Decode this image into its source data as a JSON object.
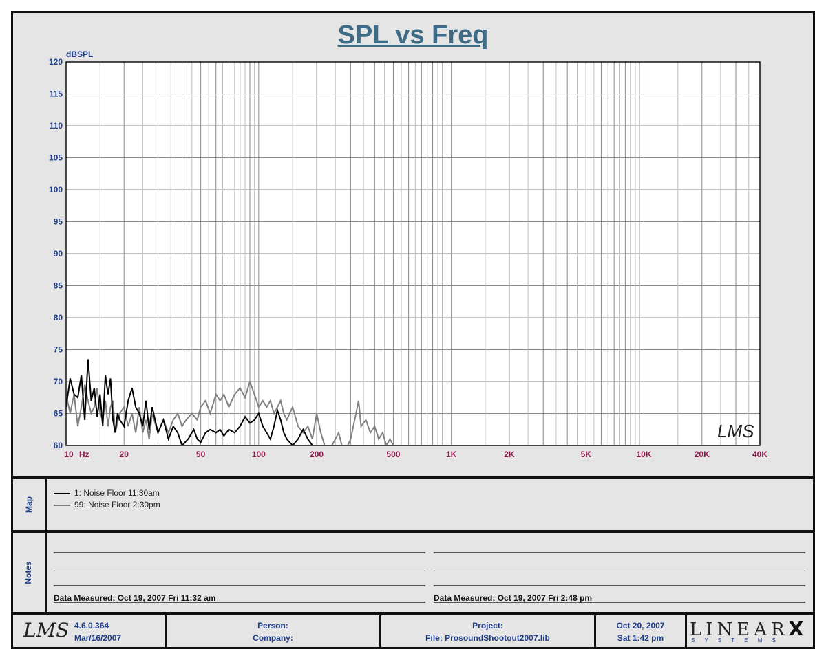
{
  "chart_data": {
    "type": "line",
    "title": "SPL vs Freq",
    "ylabel": "dBSPL",
    "xlabel": "",
    "xscale": "log",
    "xlim": [
      10,
      40000
    ],
    "ylim": [
      60,
      120
    ],
    "grid": true,
    "y_ticks": [
      "60",
      "65",
      "70",
      "75",
      "80",
      "85",
      "90",
      "95",
      "100",
      "105",
      "110",
      "115",
      "120"
    ],
    "x_ticks": [
      {
        "value": 10,
        "label": "10"
      },
      {
        "value": 20,
        "label": "20"
      },
      {
        "value": 50,
        "label": "50"
      },
      {
        "value": 100,
        "label": "100"
      },
      {
        "value": 200,
        "label": "200"
      },
      {
        "value": 500,
        "label": "500"
      },
      {
        "value": 1000,
        "label": "1K"
      },
      {
        "value": 2000,
        "label": "2K"
      },
      {
        "value": 5000,
        "label": "5K"
      },
      {
        "value": 10000,
        "label": "10K"
      },
      {
        "value": 20000,
        "label": "20K"
      },
      {
        "value": 40000,
        "label": "40K"
      }
    ],
    "x_unit": "Hz",
    "series": [
      {
        "name": "1: Noise Floor 11:30am",
        "color": "#000000",
        "points": [
          [
            10,
            66
          ],
          [
            10.5,
            70.5
          ],
          [
            11,
            68
          ],
          [
            11.5,
            67.5
          ],
          [
            12,
            71
          ],
          [
            12.5,
            64
          ],
          [
            13,
            73.5
          ],
          [
            13.5,
            67
          ],
          [
            14,
            69
          ],
          [
            14.5,
            64.5
          ],
          [
            15,
            68
          ],
          [
            15.5,
            63
          ],
          [
            16,
            71
          ],
          [
            16.5,
            68
          ],
          [
            17,
            70.5
          ],
          [
            17.5,
            64
          ],
          [
            18,
            62
          ],
          [
            18.5,
            65
          ],
          [
            19,
            64
          ],
          [
            20,
            63
          ],
          [
            21,
            67
          ],
          [
            22,
            69
          ],
          [
            23,
            66
          ],
          [
            24,
            65
          ],
          [
            25,
            63
          ],
          [
            26,
            67
          ],
          [
            27,
            62.5
          ],
          [
            28,
            66
          ],
          [
            30,
            62
          ],
          [
            32,
            64
          ],
          [
            34,
            61
          ],
          [
            36,
            63
          ],
          [
            38,
            62
          ],
          [
            40,
            60
          ],
          [
            43,
            61
          ],
          [
            46,
            62.5
          ],
          [
            48,
            61
          ],
          [
            50,
            60.5
          ],
          [
            53,
            62
          ],
          [
            56,
            62.5
          ],
          [
            60,
            62
          ],
          [
            63,
            62.5
          ],
          [
            66,
            61.5
          ],
          [
            70,
            62.5
          ],
          [
            75,
            62
          ],
          [
            80,
            63
          ],
          [
            85,
            64.5
          ],
          [
            90,
            63.5
          ],
          [
            95,
            64
          ],
          [
            100,
            65
          ],
          [
            105,
            63
          ],
          [
            110,
            62
          ],
          [
            115,
            61
          ],
          [
            120,
            63
          ],
          [
            125,
            65.5
          ],
          [
            130,
            64
          ],
          [
            135,
            62
          ],
          [
            140,
            61
          ],
          [
            150,
            60
          ],
          [
            160,
            61
          ],
          [
            170,
            62.5
          ],
          [
            180,
            61
          ],
          [
            190,
            60
          ]
        ]
      },
      {
        "name": "99: Noise Floor 2:30pm",
        "color": "#808080",
        "points": [
          [
            10,
            68
          ],
          [
            10.5,
            65
          ],
          [
            11,
            68
          ],
          [
            11.5,
            63
          ],
          [
            12,
            66
          ],
          [
            12.5,
            69.5
          ],
          [
            13,
            67
          ],
          [
            13.5,
            65
          ],
          [
            14,
            66
          ],
          [
            14.5,
            69
          ],
          [
            15,
            65
          ],
          [
            15.5,
            64
          ],
          [
            16,
            67
          ],
          [
            16.5,
            63
          ],
          [
            17,
            66
          ],
          [
            17.5,
            67
          ],
          [
            18,
            62
          ],
          [
            19,
            65
          ],
          [
            20,
            66
          ],
          [
            21,
            63
          ],
          [
            22,
            65
          ],
          [
            23,
            62
          ],
          [
            24,
            66
          ],
          [
            25,
            62
          ],
          [
            26,
            64
          ],
          [
            27,
            61
          ],
          [
            28,
            65
          ],
          [
            30,
            62
          ],
          [
            32,
            64
          ],
          [
            34,
            62
          ],
          [
            36,
            64
          ],
          [
            38,
            65
          ],
          [
            40,
            63
          ],
          [
            42,
            64
          ],
          [
            45,
            65
          ],
          [
            48,
            64
          ],
          [
            50,
            66
          ],
          [
            53,
            67
          ],
          [
            56,
            65
          ],
          [
            60,
            68
          ],
          [
            63,
            67
          ],
          [
            66,
            68
          ],
          [
            70,
            66
          ],
          [
            75,
            68
          ],
          [
            80,
            69
          ],
          [
            85,
            67.5
          ],
          [
            90,
            70
          ],
          [
            95,
            68
          ],
          [
            100,
            66
          ],
          [
            105,
            67
          ],
          [
            110,
            66
          ],
          [
            115,
            67
          ],
          [
            120,
            65
          ],
          [
            125,
            66
          ],
          [
            130,
            67
          ],
          [
            135,
            65
          ],
          [
            140,
            64
          ],
          [
            150,
            66
          ],
          [
            160,
            63
          ],
          [
            170,
            62
          ],
          [
            180,
            63
          ],
          [
            190,
            61
          ],
          [
            200,
            65
          ],
          [
            210,
            62
          ],
          [
            220,
            60
          ],
          [
            240,
            60
          ],
          [
            250,
            61
          ],
          [
            260,
            62
          ],
          [
            270,
            60
          ],
          [
            290,
            60
          ],
          [
            300,
            61
          ],
          [
            320,
            65
          ],
          [
            330,
            67
          ],
          [
            340,
            63
          ],
          [
            360,
            64
          ],
          [
            380,
            62
          ],
          [
            400,
            63
          ],
          [
            420,
            61
          ],
          [
            440,
            62
          ],
          [
            460,
            60
          ],
          [
            480,
            61
          ],
          [
            500,
            60
          ]
        ]
      }
    ]
  },
  "legend": {
    "label": "Map",
    "items": [
      "1: Noise Floor 11:30am",
      "99: Noise Floor 2:30pm"
    ]
  },
  "notes": {
    "label": "Notes",
    "left_measured": "Data Measured: Oct 19, 2007  Fri 11:32 am",
    "right_measured": "Data Measured: Oct 19, 2007  Fri  2:48 pm"
  },
  "footer": {
    "logo_text": "LMS",
    "version": "4.6.0.364",
    "version_date": "Mar/16/2007",
    "person_label": "Person:",
    "company_label": "Company:",
    "project_label": "Project:",
    "file_label": "File: ProsoundShootout2007.lib",
    "date": "Oct 20, 2007",
    "day_time": "Sat  1:42 pm",
    "brand": "LINEAR",
    "brand_x": "X",
    "brand_sub": "S Y S T E M S"
  },
  "watermark": "LMS",
  "colors": {
    "title": "#3e6c86",
    "y_tick": "#1f3e8a",
    "x_tick": "#8b1a4a",
    "background": "#e5e5e5",
    "plot_bg": "#ffffff"
  }
}
